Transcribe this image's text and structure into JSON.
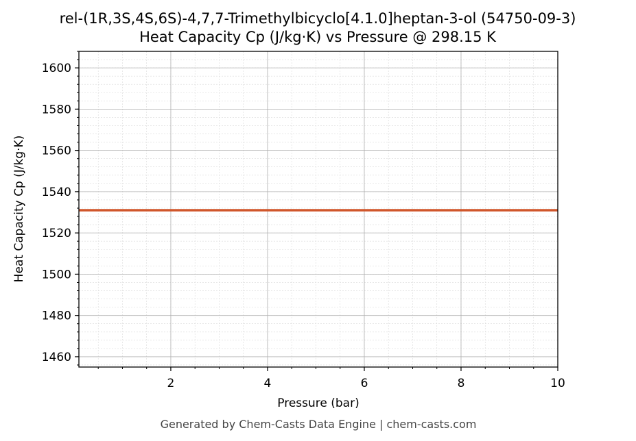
{
  "chart_data": {
    "type": "line",
    "title": "rel-(1R,3S,4S,6S)-4,7,7-Trimethylbicyclo[4.1.0]heptan-3-ol (54750-09-3)",
    "subtitle": "Heat Capacity Cp (J/kg·K) vs Pressure @ 298.15 K",
    "xlabel": "Pressure (bar)",
    "ylabel": "Heat Capacity Cp (J/kg·K)",
    "xlim": [
      0.1,
      10
    ],
    "ylim": [
      1455,
      1608
    ],
    "x_ticks": [
      2,
      4,
      6,
      8,
      10
    ],
    "y_ticks": [
      1460,
      1480,
      1500,
      1520,
      1540,
      1560,
      1580,
      1600
    ],
    "grid": true,
    "series": [
      {
        "color": "#d0562b",
        "x": [
          0.1,
          1,
          2,
          3,
          4,
          5,
          6,
          7,
          8,
          9,
          10
        ],
        "y": [
          1531,
          1531,
          1531,
          1531,
          1531,
          1531,
          1531,
          1531,
          1531,
          1531,
          1531
        ]
      }
    ]
  },
  "footer": "Generated by Chem-Casts Data Engine | chem-casts.com"
}
